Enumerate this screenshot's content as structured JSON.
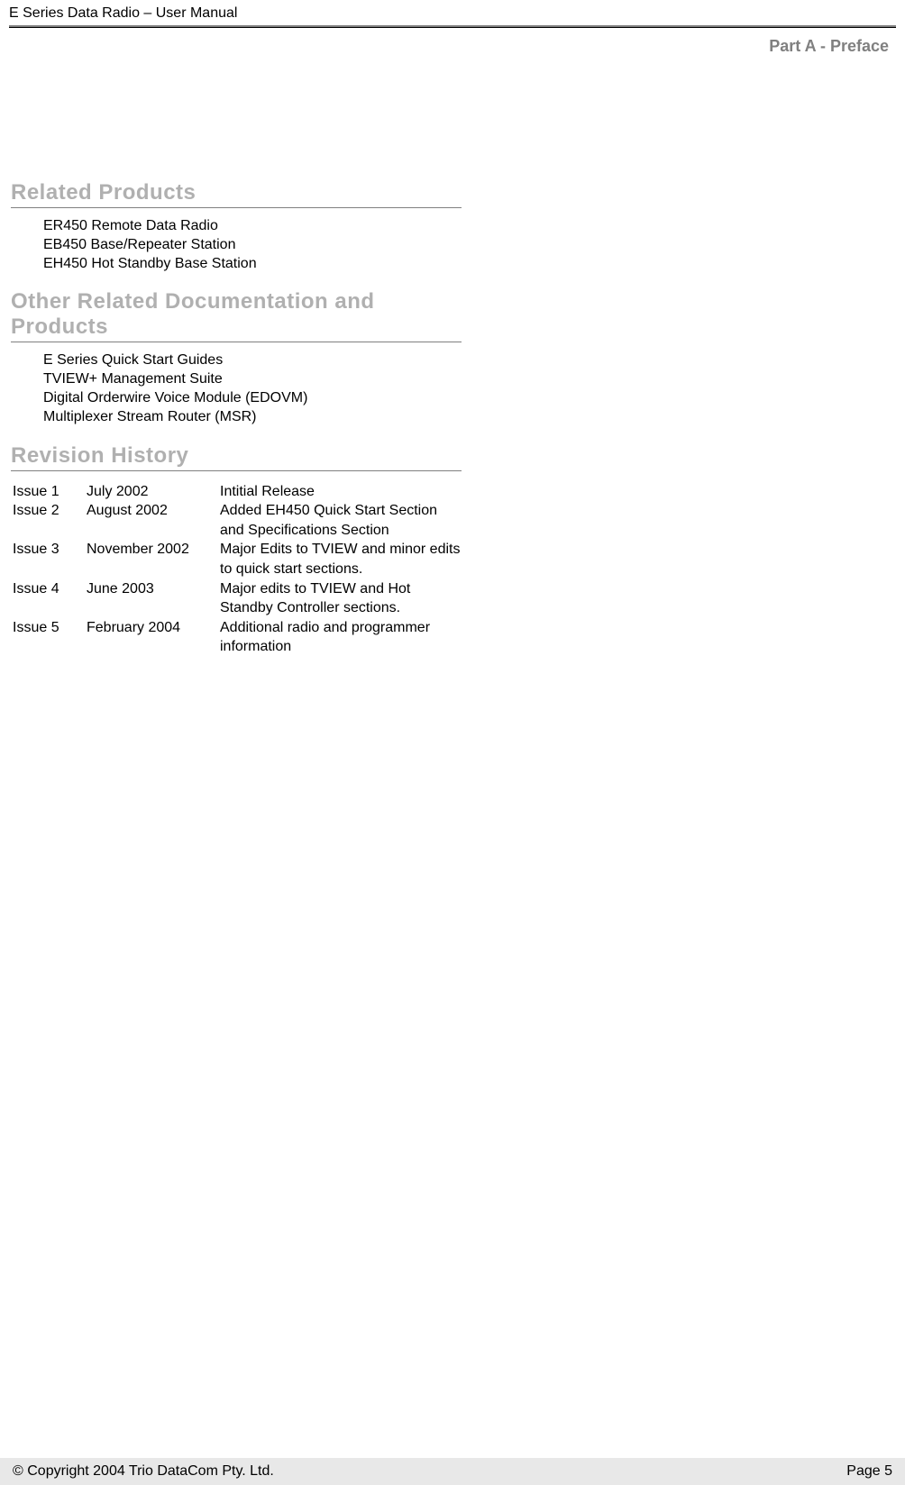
{
  "header": {
    "title": "E Series Data Radio – User Manual"
  },
  "section_label": "Part A - Preface",
  "sections": {
    "related_products": {
      "heading": "Related Products",
      "items": [
        "ER450 Remote Data Radio",
        "EB450 Base/Repeater Station",
        "EH450 Hot Standby Base Station"
      ]
    },
    "other_related": {
      "heading": "Other Related Documentation and Products",
      "items": [
        "E Series Quick Start Guides",
        "TVIEW+ Management Suite",
        "Digital Orderwire Voice Module (EDOVM)",
        "Multiplexer Stream Router (MSR)"
      ]
    },
    "revision_history": {
      "heading": "Revision History",
      "rows": [
        {
          "issue": "Issue 1",
          "date": "July 2002",
          "desc": "Intitial Release"
        },
        {
          "issue": "Issue 2",
          "date": "August 2002",
          "desc": "Added EH450 Quick Start Section and Specifications Section"
        },
        {
          "issue": "Issue 3",
          "date": "November 2002",
          "desc": "Major Edits to TVIEW and minor edits to quick start sections."
        },
        {
          "issue": "Issue 4",
          "date": "June 2003",
          "desc": "Major edits to TVIEW and Hot Standby Controller sections."
        },
        {
          "issue": "Issue 5",
          "date": "February 2004",
          "desc": "Additional radio and programmer information"
        }
      ]
    }
  },
  "footer": {
    "copyright": "© Copyright 2004 Trio DataCom Pty. Ltd.",
    "page": "Page 5"
  },
  "colors": {
    "heading_gray": "#b0b0b0",
    "label_gray": "#808080",
    "footer_bg": "#e8e8e8",
    "text": "#000000",
    "background": "#ffffff"
  },
  "typography": {
    "body_fontsize": 16,
    "heading_fontsize": 24,
    "label_fontsize": 18,
    "font_family": "Arial"
  }
}
